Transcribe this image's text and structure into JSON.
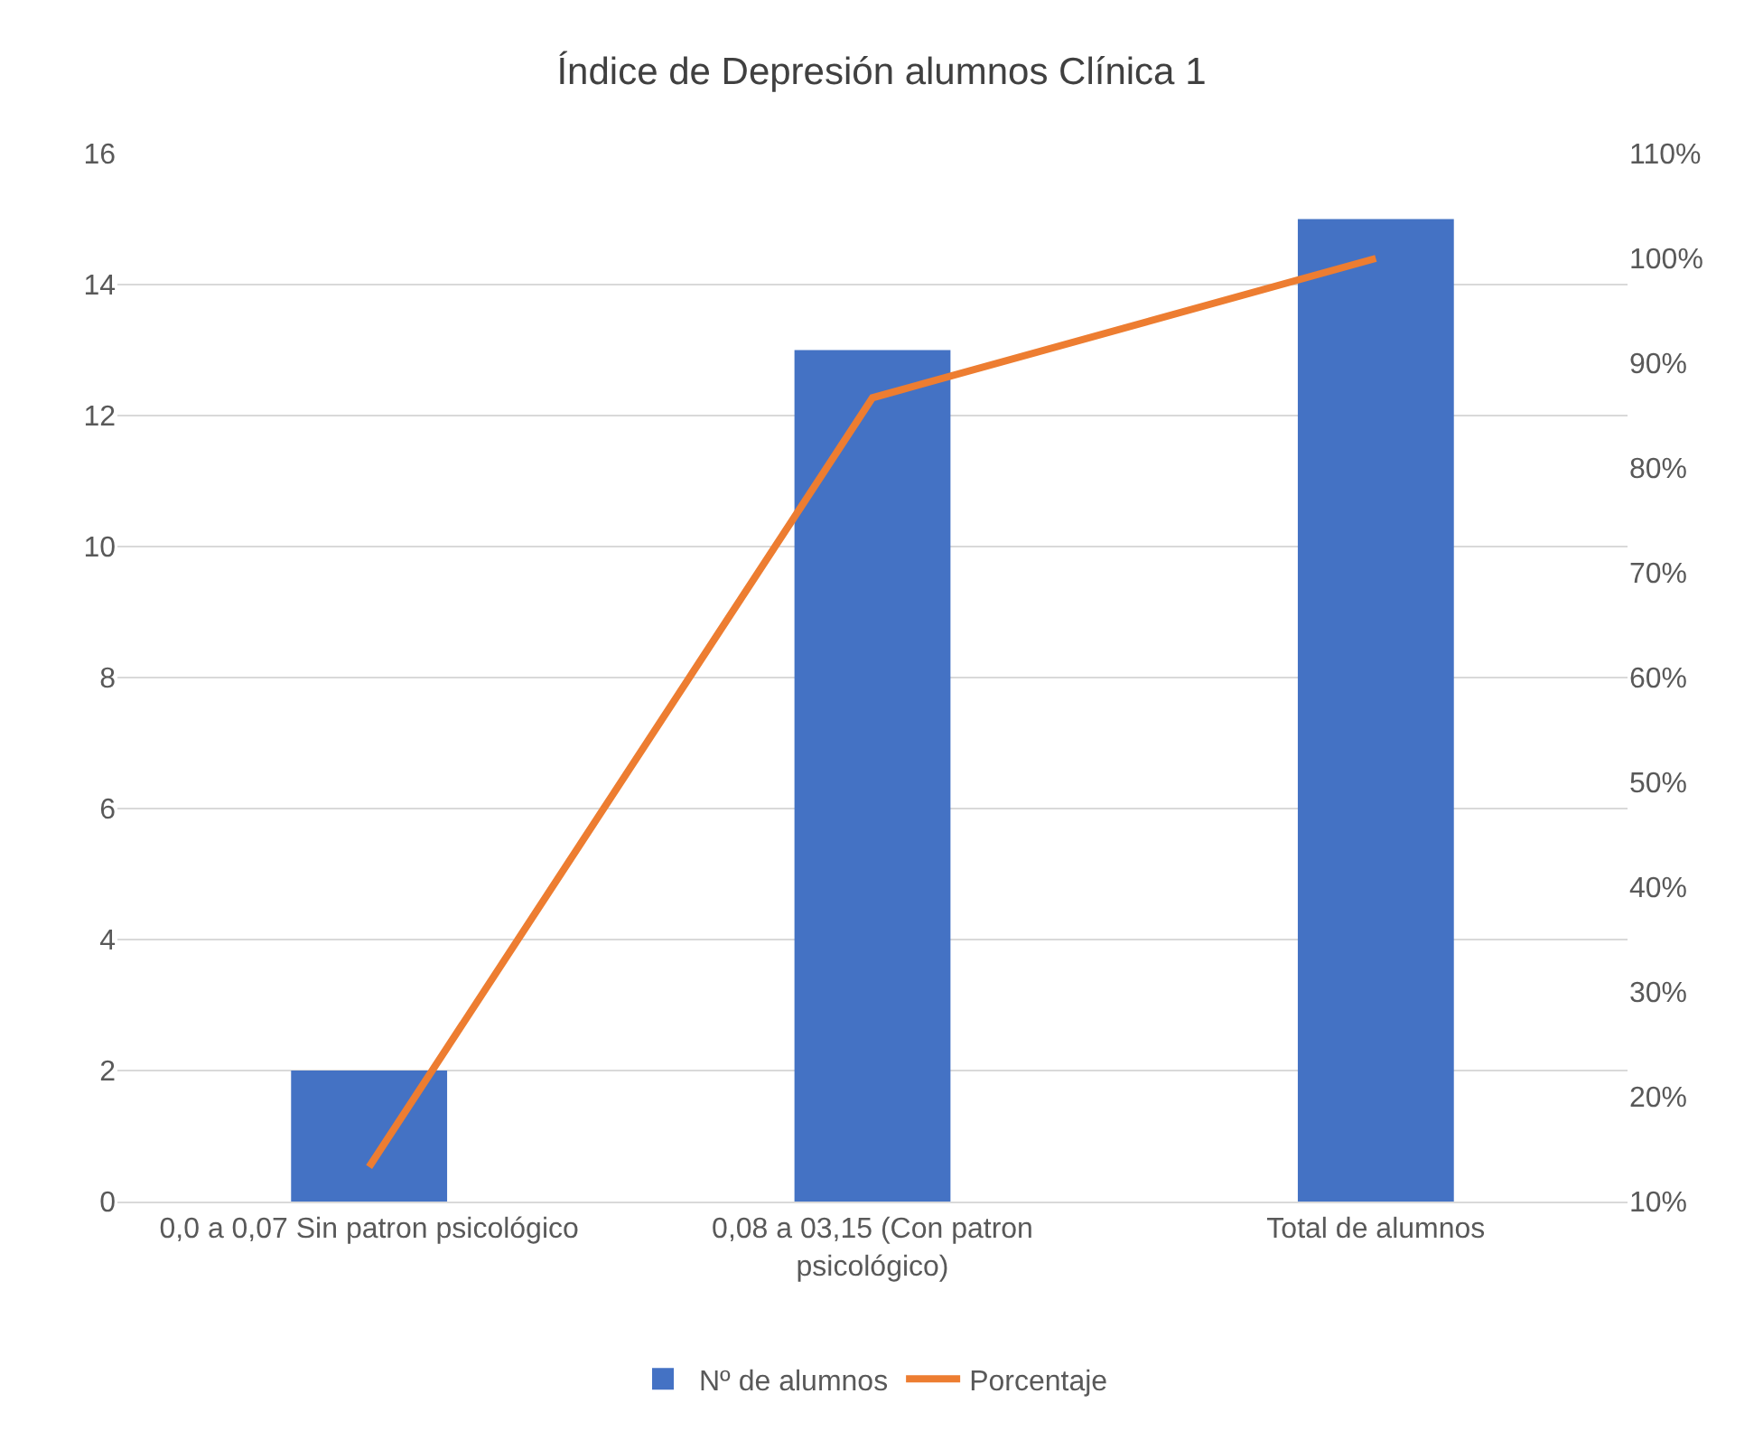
{
  "chart_data": {
    "type": "bar",
    "title": "Índice de Depresión alumnos Clínica 1",
    "categories": [
      "0,0 a 0,07 Sin patron psicológico",
      "0,08 a 03,15 (Con patron psicológico)",
      "Total de alumnos"
    ],
    "series": [
      {
        "name": "Nº de alumnos",
        "color": "#4472c4",
        "values": [
          2,
          13,
          15
        ]
      },
      {
        "name": "Porcentaje",
        "type": "line",
        "axis": "y2",
        "color": "#ed7d31",
        "values": [
          13.3,
          86.7,
          100
        ],
        "marker": "none"
      }
    ],
    "ylim": [
      0,
      16
    ],
    "yticks": [
      0,
      2,
      4,
      6,
      8,
      10,
      12,
      14,
      16
    ],
    "y2lim": [
      10,
      110
    ],
    "y2ticks": [
      {
        "value": 10,
        "label": "10%"
      },
      {
        "value": 20,
        "label": "20%"
      },
      {
        "value": 30,
        "label": "30%"
      },
      {
        "value": 40,
        "label": "40%"
      },
      {
        "value": 50,
        "label": "50%"
      },
      {
        "value": 60,
        "label": "60%"
      },
      {
        "value": 70,
        "label": "70%"
      },
      {
        "value": 80,
        "label": "80%"
      },
      {
        "value": 90,
        "label": "90%"
      },
      {
        "value": 100,
        "label": "100%"
      },
      {
        "value": 110,
        "label": "110%"
      }
    ],
    "grid": "y",
    "legend": "bottom"
  }
}
